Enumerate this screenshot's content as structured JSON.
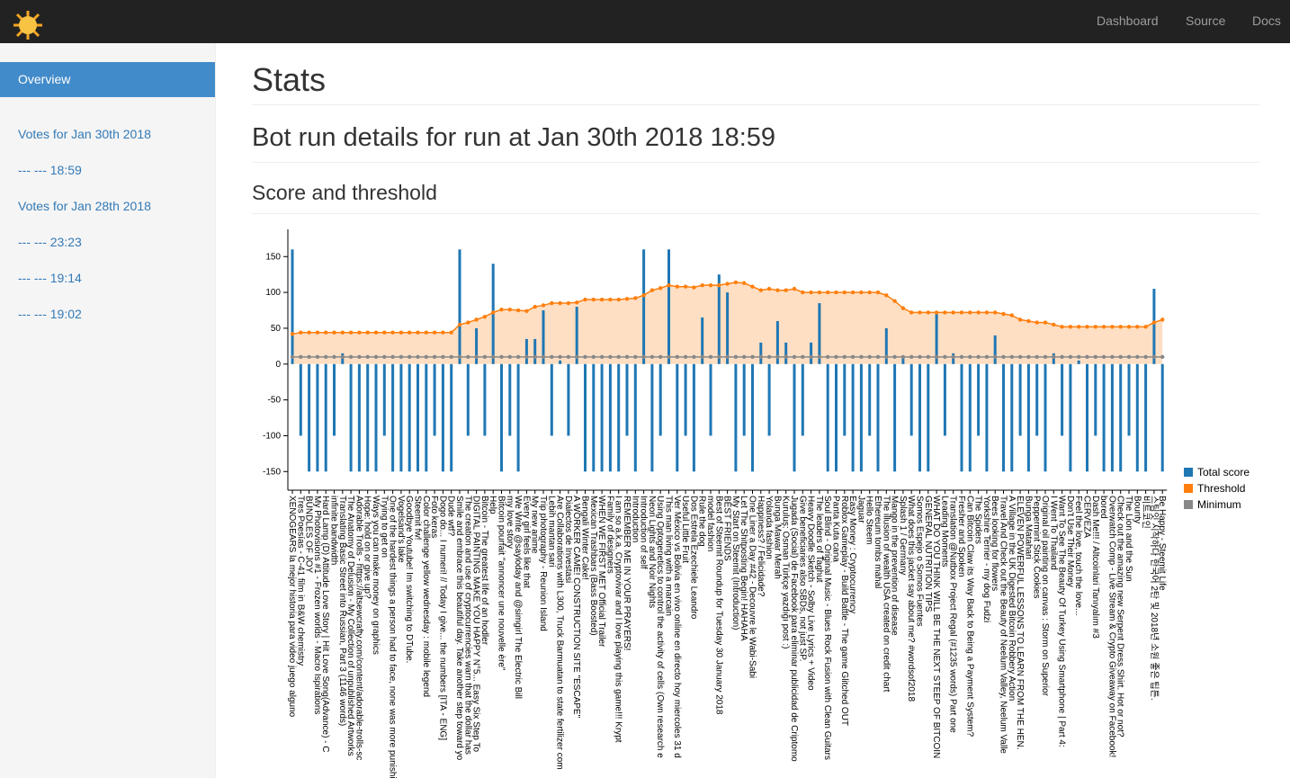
{
  "nav": {
    "links": [
      "Dashboard",
      "Source",
      "Docs"
    ]
  },
  "sidebar": {
    "items": [
      "Overview",
      "Votes for Jan 30th 2018",
      "--- --- 18:59",
      "Votes for Jan 28th 2018",
      "--- --- 23:23",
      "--- --- 19:14",
      "--- --- 19:02"
    ]
  },
  "page": {
    "title": "Stats",
    "subtitle": "Bot run details for run at Jan 30th 2018 18:59",
    "section": "Score and threshold"
  },
  "chart_data": {
    "type": "bar_line",
    "legend": "right",
    "ylim": [
      -176,
      188
    ],
    "yticks": [
      -150,
      -100,
      -50,
      0,
      50,
      100,
      150
    ],
    "categories": [
      "XENOGEARS la mejor historia para video juego alguno",
      "Tres Poesías - C-41 film in B&W chemistry",
      "BUNDLES OF JOY",
      "My Photovisions #1 - Frozen worlds - Macro Ispirations",
      "Hard Lamp (D) Attitude Love Story | Hit Love Song(Advance) - C",
      "infinite bandwidth",
      "Translating Basic Street into Russian, Part 3 (1146 words)",
      "The Anatomy of Delusion - My Collection of unpublished Artworks",
      "Adorable Trolls - https://altsewcrafty.com/content/adorable-trolls-sc",
      "Hope: hold on or give up?",
      "Ways you can make money on graphics",
      "Trying to get on",
      "One of the hardest things a person had to face, none was more punishir",
      "Vogelsand's lake",
      "Goodbye Youtube! Im switching to DTube.",
      "Steemit fw!",
      "Color challenge yellow wednesday : mobile legend",
      "Foto keras",
      "Dogo do... I numeri! // Today I give... the numbers [ITA - ENG]",
      "Dude wtf?",
      "Smile and embrace this beautiful day. Take another step toward yo",
      "The creation and use of cryptocurrencies warn that the dollar has",
      "DIGITAL PAINTING MAKE YOU HAPPY N°5... Easy Six Step To",
      "Bitcoin - The greatest life of an hodler",
      "Help",
      "Bitcoin pourfait \"annoncer une nouvelle ère\"",
      "my love story",
      "We Write @sayloday and @simgirl The Electric Bill",
      "Every girl feels like that",
      "My new anime",
      "Trip photography - Reunion Island",
      "Lebih mantan sari",
      "Are Collaborations with L300, Truck Barmuatan to state fertilizer com",
      "Dialectos de Investasi",
      "A WORKER CAME! CONSTRUCTION SITE \"ESCAPE\"",
      "Bengali Winter Cake!",
      "Mexican Trashbars (Bass Boosted)",
      "WHEN WE FIRST MET Official Trailer",
      "Family of designers",
      "I am so a.k.a. Cryptovivar and I love playing this game!!! Krypt",
      "REMEMBER ME IN YOUR PRAYERS!",
      "Introduction",
      "Introduction of self",
      "Neon Lights and Noir Nights",
      "Using Optogenetics to control the activity of cells (Own research e",
      "This man living with a marcain",
      "Ver México vs Bolivia en vivo online en directo hoy miercoles 31 d",
      "Useful Little Fruit",
      "Dos Estrela Ezechiele Leandro",
      "Rule the dog",
      "model fashion",
      "Best of Steemit Roundup for Tuesday 30 January 2018",
      "BEST FRIENDS",
      "My Start on Steemit (Introduction)",
      "Let The Shitposting Begin! HAHAHA",
      "One Liner a Day #42 - Decouvre le Wabi-Sabi",
      "Happiness? / Felicidade?",
      "Yolanda fashion",
      "Bunga Mawar Merah",
      "Kuruluş: Osman Türkçe yazdığı post :)",
      "Jugada (Social) de Facebook para eliminar publicidad de Criptomo",
      "Give beneficiaries also SBDs, not just SP.",
      "Heavy Doodle Sketch - Solby Live Lyrics + Video",
      "The leaders of Taghut",
      "Soul Blind - Original Music - Blues Rock Fusion with Clean Guitars",
      "Panta Kuta cana",
      "Roblox Gameplay - Build Battle - The game Glitched OUT",
      "Easy Money : Cryptocurrency",
      "Jaguar",
      "Hello Steem",
      "Ethereum tombs mahal",
      "The illusion of wealth USA created on credit chart",
      "Mango in the prevention of disease",
      "Splash 1 / Germany",
      "What does this jacket say about me? #wordsof2018",
      "Somos Espejo o Somos Fuentes",
      "GENERAL NUTRITION TIPS",
      "WHAT DO YOU THINK WILL BE THE NEXT STEEP OF BITCOIN",
      "Leading Moments",
      "Translation @Nutbox Project Regal (#1235 words) Part one",
      "Fresher and Spoken",
      "Can Bitcoin Claw its Way Back to Being a Payment System?",
      "The Spiders",
      "Yorkshire Terrier - my dog Fudzi",
      "Bees looking for flowers",
      "Travel And Check out the Beauty of Neelum Valley, Neelum Valle",
      "A Village in the UK Digested Bitcoin Robbery Action",
      "ELEVEN POWERFUL LESSONS TO LEARN FROM THE HEN.",
      "Bunga Matahari",
      "Peppermint Stick Cookies",
      "Original oil painting on canvas : Storm on Superior",
      "I Went To Thailand",
      "Want To See The Beauty Of Turkey Using Smartphone | Part 4:",
      "Don't Use Their Money",
      "Feel the love, touch the love...",
      "CERVEZA",
      "Dash Me!!! / Altcoinlari Tanıyalım #3",
      "bored",
      "Overwatch Comp - Live Stream & Crypto Giveaway on Facebook!",
      "Check out the amazing new Serpent Dress Shirt. Hot or not?",
      "The Lion and the Sun",
      "Bounty",
      "비트코인",
      "스팀잇 시작하다 한국어 2탄 및 2018년 소원 좋은 팁튼.",
      "Be Happy - Steemit Life"
    ],
    "series": [
      {
        "name": "Total score",
        "color": "#1f77b4",
        "values": [
          160,
          -100,
          -150,
          -150,
          -150,
          -100,
          15,
          -150,
          -150,
          -150,
          -150,
          -100,
          -150,
          -150,
          -150,
          -150,
          -150,
          -100,
          -150,
          -150,
          160,
          -100,
          50,
          -100,
          140,
          -150,
          -100,
          -150,
          35,
          35,
          75,
          -100,
          5,
          -100,
          80,
          -150,
          -150,
          -150,
          -150,
          -150,
          -100,
          -150,
          160,
          -150,
          -100,
          160,
          -150,
          -100,
          -150,
          65,
          -100,
          125,
          100,
          -150,
          -100,
          -150,
          30,
          -100,
          60,
          30,
          -150,
          -100,
          30,
          85,
          -150,
          -150,
          -100,
          -150,
          -150,
          -100,
          -150,
          50,
          -150,
          10,
          -100,
          -150,
          -150,
          70,
          -100,
          15,
          -150,
          -150,
          -100,
          -150,
          40,
          -150,
          -150,
          -100,
          -150,
          -100,
          -150,
          15,
          -100,
          -150,
          5,
          -150,
          -100,
          -150,
          -150,
          -150,
          -100,
          -150,
          -150,
          105,
          -150
        ]
      },
      {
        "name": "Threshold",
        "color": "#ff7f0e",
        "values": [
          42,
          44,
          44,
          44,
          44,
          44,
          44,
          44,
          44,
          44,
          44,
          44,
          44,
          44,
          44,
          44,
          44,
          44,
          44,
          44,
          55,
          58,
          62,
          66,
          72,
          76,
          76,
          75,
          74,
          80,
          82,
          85,
          85,
          85,
          86,
          90,
          90,
          90,
          90,
          90,
          91,
          92,
          96,
          103,
          106,
          110,
          108,
          108,
          107,
          110,
          110,
          110,
          112,
          114,
          113,
          108,
          103,
          105,
          103,
          103,
          105,
          100,
          100,
          100,
          100,
          100,
          100,
          100,
          100,
          100,
          100,
          96,
          88,
          78,
          72,
          72,
          72,
          72,
          72,
          72,
          72,
          72,
          72,
          72,
          72,
          70,
          68,
          62,
          60,
          58,
          58,
          55,
          52,
          52,
          52,
          52,
          52,
          52,
          52,
          52,
          52,
          52,
          52,
          58,
          62
        ]
      },
      {
        "name": "Minimum",
        "color": "#888888",
        "values": [
          10,
          10,
          10,
          10,
          10,
          10,
          10,
          10,
          10,
          10,
          10,
          10,
          10,
          10,
          10,
          10,
          10,
          10,
          10,
          10,
          10,
          10,
          10,
          10,
          10,
          10,
          10,
          10,
          10,
          10,
          10,
          10,
          10,
          10,
          10,
          10,
          10,
          10,
          10,
          10,
          10,
          10,
          10,
          10,
          10,
          10,
          10,
          10,
          10,
          10,
          10,
          10,
          10,
          10,
          10,
          10,
          10,
          10,
          10,
          10,
          10,
          10,
          10,
          10,
          10,
          10,
          10,
          10,
          10,
          10,
          10,
          10,
          10,
          10,
          10,
          10,
          10,
          10,
          10,
          10,
          10,
          10,
          10,
          10,
          10,
          10,
          10,
          10,
          10,
          10,
          10,
          10,
          10,
          10,
          10,
          10,
          10,
          10,
          10,
          10,
          10,
          10,
          10,
          10,
          10
        ]
      }
    ]
  }
}
